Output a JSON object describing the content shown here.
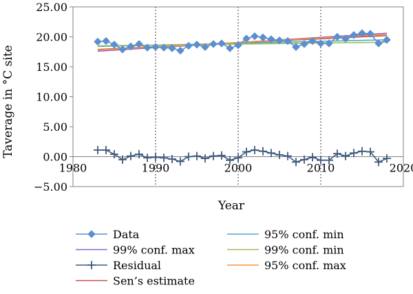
{
  "chart_data": {
    "type": "line",
    "title": "",
    "xlabel": "Year",
    "ylabel": "Taverage in °C site",
    "xlim": [
      1980,
      2020
    ],
    "ylim": [
      -5,
      25
    ],
    "xticks": [
      1980,
      1990,
      2000,
      2010,
      2020
    ],
    "yticks": [
      "−5.00",
      "0.00",
      "5.00",
      "10.00",
      "15.00",
      "20.00",
      "25.00"
    ],
    "grid": "vertical dotted",
    "legend_position": "bottom",
    "x": [
      1983,
      1984,
      1985,
      1986,
      1987,
      1988,
      1989,
      1990,
      1991,
      1992,
      1993,
      1994,
      1995,
      1996,
      1997,
      1998,
      1999,
      2000,
      2001,
      2002,
      2003,
      2004,
      2005,
      2006,
      2007,
      2008,
      2009,
      2010,
      2011,
      2012,
      2013,
      2014,
      2015,
      2016,
      2017,
      2018
    ],
    "series": [
      {
        "name": "Data",
        "color": "#5b8fd0",
        "marker": "diamond",
        "line": true,
        "values": [
          19.2,
          19.3,
          18.7,
          17.9,
          18.4,
          18.8,
          18.2,
          18.3,
          18.2,
          18.1,
          17.7,
          18.5,
          18.7,
          18.3,
          18.8,
          18.9,
          18.1,
          18.6,
          19.7,
          20.1,
          19.9,
          19.6,
          19.4,
          19.3,
          18.3,
          18.8,
          19.3,
          18.9,
          18.9,
          20.0,
          19.7,
          20.3,
          20.6,
          20.5,
          18.9,
          19.5
        ]
      },
      {
        "name": "Residual",
        "color": "#3d5a80",
        "marker": "plus",
        "line": true,
        "values": [
          1.1,
          1.1,
          0.4,
          -0.5,
          0.1,
          0.4,
          -0.2,
          -0.1,
          -0.2,
          -0.4,
          -0.8,
          0.0,
          0.1,
          -0.3,
          0.1,
          0.2,
          -0.6,
          -0.2,
          0.8,
          1.1,
          0.9,
          0.6,
          0.3,
          0.1,
          -0.9,
          -0.5,
          -0.1,
          -0.6,
          -0.6,
          0.5,
          0.1,
          0.6,
          0.9,
          0.8,
          -0.9,
          -0.3
        ]
      }
    ],
    "trend_lines": [
      {
        "name": "99% conf. max",
        "color": "#8a63c8",
        "x": [
          1983,
          2018
        ],
        "y": [
          17.6,
          20.6
        ]
      },
      {
        "name": "Sen’s estimate",
        "color": "#c0504d",
        "x": [
          1983,
          2018
        ],
        "y": [
          17.9,
          20.2
        ]
      },
      {
        "name": "95% conf. min",
        "color": "#4bacc6",
        "x": [
          1983,
          2018
        ],
        "y": [
          18.4,
          19.5
        ]
      },
      {
        "name": "99% conf. min",
        "color": "#9bbb59",
        "x": [
          1983,
          2018
        ],
        "y": [
          18.5,
          19.1
        ]
      },
      {
        "name": "95% conf. max",
        "color": "#f79646",
        "x": [
          1983,
          2018
        ],
        "y": [
          17.8,
          20.4
        ]
      }
    ],
    "legend": [
      {
        "label": "Data",
        "key": "data",
        "color": "#5b8fd0",
        "marker": "diamond"
      },
      {
        "label": "95% conf. min",
        "key": "ci95min",
        "color": "#4bacc6",
        "marker": "none"
      },
      {
        "label": "99% conf. max",
        "key": "ci99max",
        "color": "#8a63c8",
        "marker": "none"
      },
      {
        "label": "99% conf. min",
        "key": "ci99min",
        "color": "#9bbb59",
        "marker": "none"
      },
      {
        "label": "Residual",
        "key": "residual",
        "color": "#3d5a80",
        "marker": "plus"
      },
      {
        "label": "95% conf. max",
        "key": "ci95max",
        "color": "#f79646",
        "marker": "none"
      },
      {
        "label": "Sen’s estimate",
        "key": "sen",
        "color": "#c0504d",
        "marker": "none"
      }
    ]
  }
}
